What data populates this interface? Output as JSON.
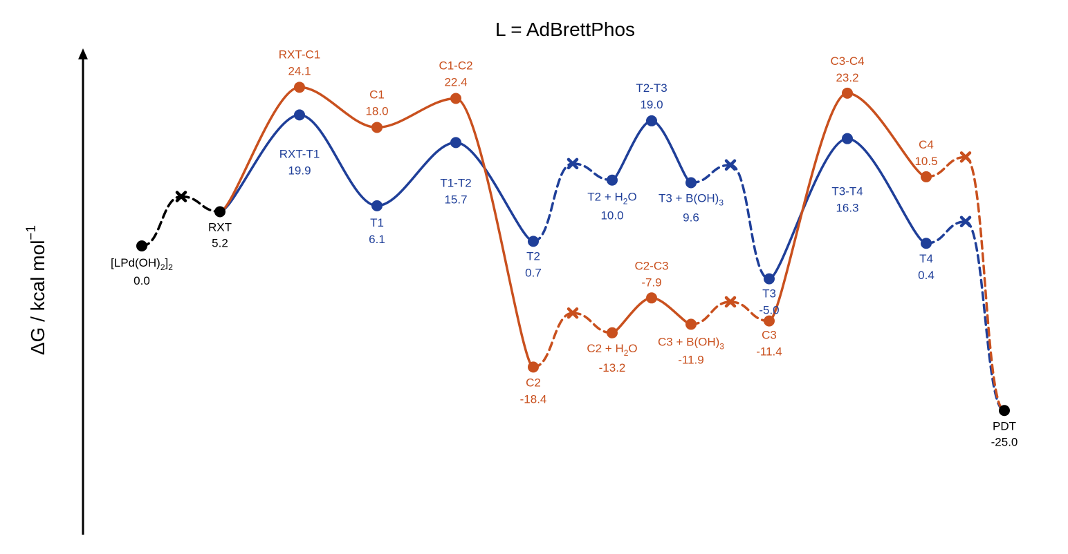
{
  "chart_data": {
    "type": "line",
    "title": "L = AdBrettPhos",
    "ylabel": "ΔG / kcal mol",
    "ylabel_sup": "−1",
    "ylim": [
      -39,
      36
    ],
    "grid": false,
    "colors": {
      "common": "#000000",
      "T": "#1f3f99",
      "C": "#c9501e"
    },
    "common": {
      "start": {
        "name": "[LPd(OH)2]2",
        "energy": 0.0,
        "label_parts": [
          "[LPd(OH)",
          "2",
          "]",
          "2"
        ],
        "value_label": "0.0"
      },
      "x_marker": {
        "energy": 7.5
      },
      "rxt": {
        "name": "RXT",
        "energy": 5.2,
        "value_label": "5.2"
      },
      "end": {
        "name": "PDT",
        "energy": -25.0,
        "value_label": "-25.0"
      }
    },
    "series": [
      {
        "id": "T",
        "points": [
          {
            "name": "RXT-T1",
            "energy": 19.9,
            "value_label": "19.9"
          },
          {
            "name": "T1",
            "energy": 6.1,
            "value_label": "6.1"
          },
          {
            "name": "T1-T2",
            "energy": 15.7,
            "value_label": "15.7"
          },
          {
            "name": "T2",
            "energy": 0.7,
            "value_label": "0.7"
          },
          {
            "name": "T2 + H2O",
            "energy": 10.0,
            "value_label": "10.0",
            "label_parts": [
              "T2 + H",
              "2",
              "O"
            ]
          },
          {
            "name": "T2-T3",
            "energy": 19.0,
            "value_label": "19.0"
          },
          {
            "name": "T3 + B(OH)3",
            "energy": 9.6,
            "value_label": "9.6",
            "label_parts": [
              "T3 + B(OH)",
              "3"
            ]
          },
          {
            "name": "T3",
            "energy": -5.0,
            "value_label": "-5.0"
          },
          {
            "name": "T3-T4",
            "energy": 16.3,
            "value_label": "16.3"
          },
          {
            "name": "T4",
            "energy": 0.4,
            "value_label": "0.4"
          }
        ],
        "x_markers": [
          {
            "after": "T2",
            "energy": 12.5
          },
          {
            "after": "T3 + B(OH)3",
            "energy": 12.3
          },
          {
            "after": "T4",
            "energy": 3.7
          }
        ]
      },
      {
        "id": "C",
        "points": [
          {
            "name": "RXT-C1",
            "energy": 24.1,
            "value_label": "24.1"
          },
          {
            "name": "C1",
            "energy": 18.0,
            "value_label": "18.0"
          },
          {
            "name": "C1-C2",
            "energy": 22.4,
            "value_label": "22.4"
          },
          {
            "name": "C2",
            "energy": -18.4,
            "value_label": "-18.4"
          },
          {
            "name": "C2 + H2O",
            "energy": -13.2,
            "value_label": "-13.2",
            "label_parts": [
              "C2 + H",
              "2",
              "O"
            ]
          },
          {
            "name": "C2-C3",
            "energy": -7.9,
            "value_label": "-7.9"
          },
          {
            "name": "C3 + B(OH)3",
            "energy": -11.9,
            "value_label": "-11.9",
            "label_parts": [
              "C3 + B(OH)",
              "3"
            ]
          },
          {
            "name": "C3",
            "energy": -11.4,
            "value_label": "-11.4"
          },
          {
            "name": "C3-C4",
            "energy": 23.2,
            "value_label": "23.2"
          },
          {
            "name": "C4",
            "energy": 10.5,
            "value_label": "10.5"
          }
        ],
        "x_markers": [
          {
            "after": "C2",
            "energy": -10.2
          },
          {
            "after": "C3 + B(OH)3",
            "energy": -8.5
          },
          {
            "after": "C4",
            "energy": 13.5
          }
        ]
      }
    ]
  }
}
